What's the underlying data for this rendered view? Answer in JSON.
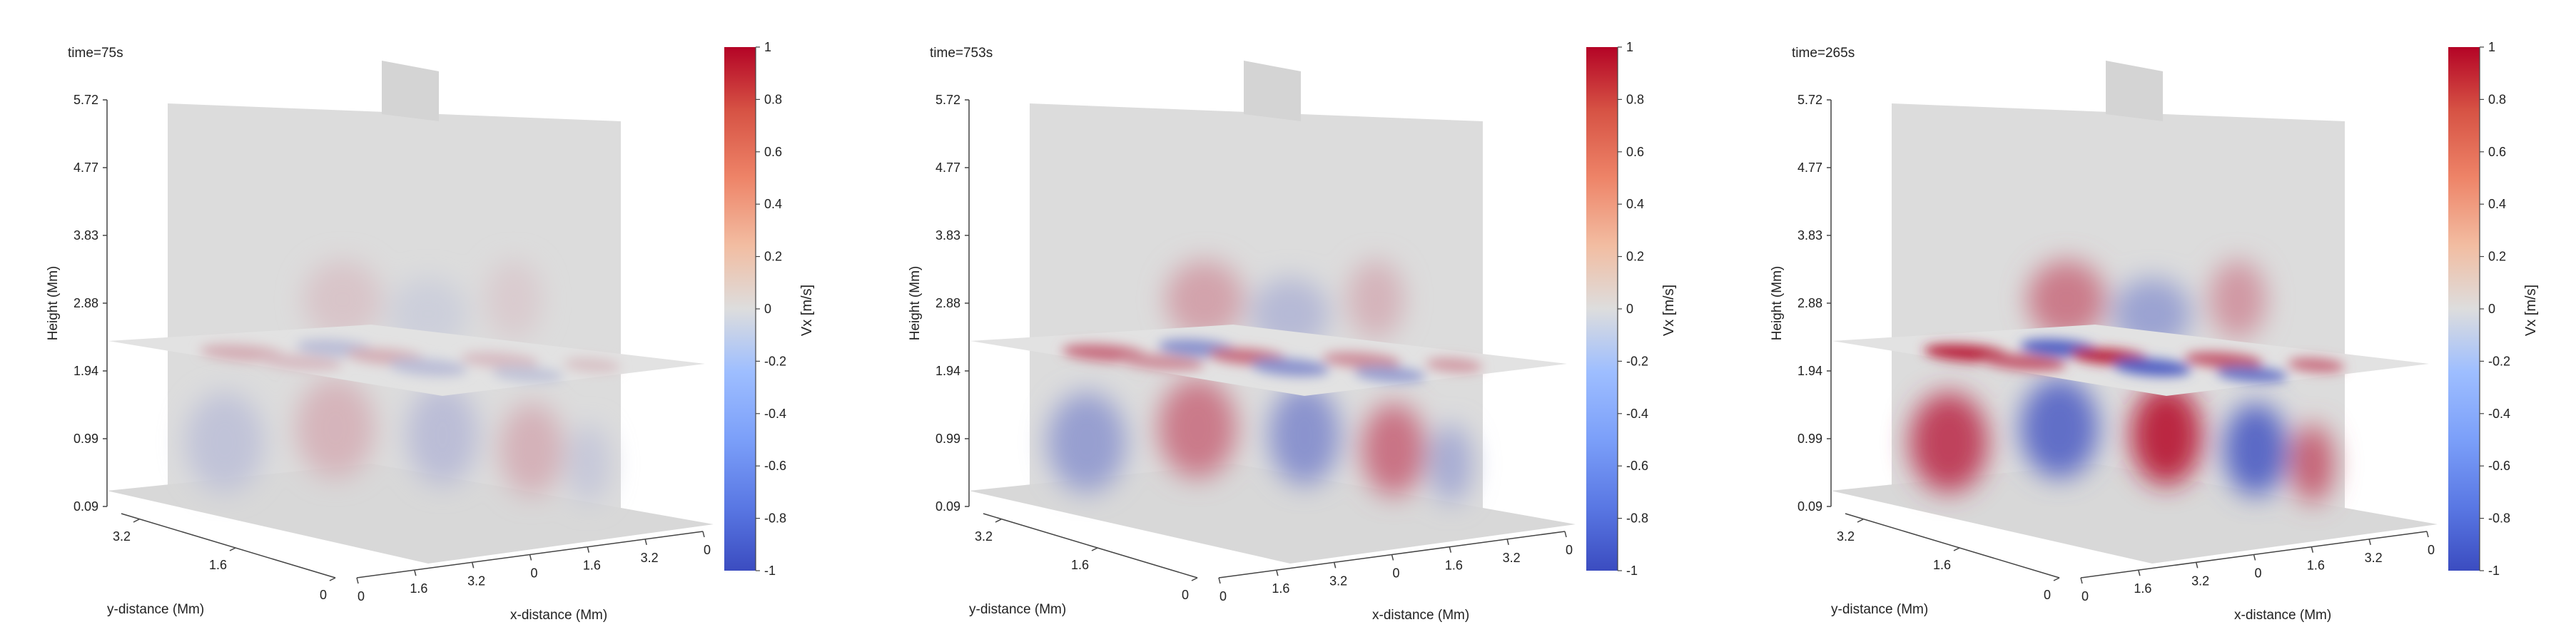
{
  "figure": {
    "panels": [
      {
        "time_label": "time=75s"
      },
      {
        "time_label": "time=753s"
      },
      {
        "time_label": "time=265s"
      }
    ]
  },
  "chart_data": [
    {
      "type": "heatmap",
      "title": "time=75s",
      "zlabel": "Height (Mm)",
      "ylabel": "y-distance (Mm)",
      "xlabel": "x-distance (Mm)",
      "z_ticks": [
        "0.09",
        "0.99",
        "1.94",
        "2.88",
        "3.83",
        "4.77",
        "5.72"
      ],
      "y_ticks": [
        "0",
        "1.6",
        "3.2"
      ],
      "x_ticks": [
        "0",
        "1.6",
        "3.2",
        "0",
        "1.6",
        "3.2",
        "0"
      ],
      "colorbar": {
        "label": "Vx [m/s]",
        "range": [
          -1,
          1
        ],
        "ticks": [
          "1",
          "0.8",
          "0.6",
          "0.4",
          "0.2",
          "0",
          "-0.2",
          "-0.4",
          "-0.6",
          "-0.8",
          "-1"
        ]
      },
      "wave_amplitude": 0.25
    },
    {
      "type": "heatmap",
      "title": "time=753s",
      "zlabel": "Height (Mm)",
      "ylabel": "y-distance (Mm)",
      "xlabel": "x-distance (Mm)",
      "z_ticks": [
        "0.09",
        "0.99",
        "1.94",
        "2.88",
        "3.83",
        "4.77",
        "5.72"
      ],
      "y_ticks": [
        "0",
        "1.6",
        "3.2"
      ],
      "x_ticks": [
        "0",
        "1.6",
        "3.2",
        "0",
        "1.6",
        "3.2",
        "0"
      ],
      "colorbar": {
        "label": "Vx [m/s]",
        "range": [
          -1,
          1
        ],
        "ticks": [
          "1",
          "0.8",
          "0.6",
          "0.4",
          "0.2",
          "0",
          "-0.2",
          "-0.4",
          "-0.6",
          "-0.8",
          "-1"
        ]
      },
      "wave_amplitude": 0.6
    },
    {
      "type": "heatmap",
      "title": "time=265s",
      "zlabel": "Height (Mm)",
      "ylabel": "y-distance (Mm)",
      "xlabel": "x-distance (Mm)",
      "z_ticks": [
        "0.09",
        "0.99",
        "1.94",
        "2.88",
        "3.83",
        "4.77",
        "5.72"
      ],
      "y_ticks": [
        "0",
        "1.6",
        "3.2"
      ],
      "x_ticks": [
        "0",
        "1.6",
        "3.2",
        "0",
        "1.6",
        "3.2",
        "0"
      ],
      "colorbar": {
        "label": "Vx [m/s]",
        "range": [
          -1,
          1
        ],
        "ticks": [
          "1",
          "0.8",
          "0.6",
          "0.4",
          "0.2",
          "0",
          "-0.2",
          "-0.4",
          "-0.6",
          "-0.8",
          "-1"
        ]
      },
      "wave_amplitude": 1.0
    }
  ],
  "colors": {
    "cmap_low": "#3b4cc0",
    "cmap_mid": "#dddddd",
    "cmap_high": "#b40426",
    "slice_neutral": "#dcdcdc",
    "axis": "#444444"
  }
}
